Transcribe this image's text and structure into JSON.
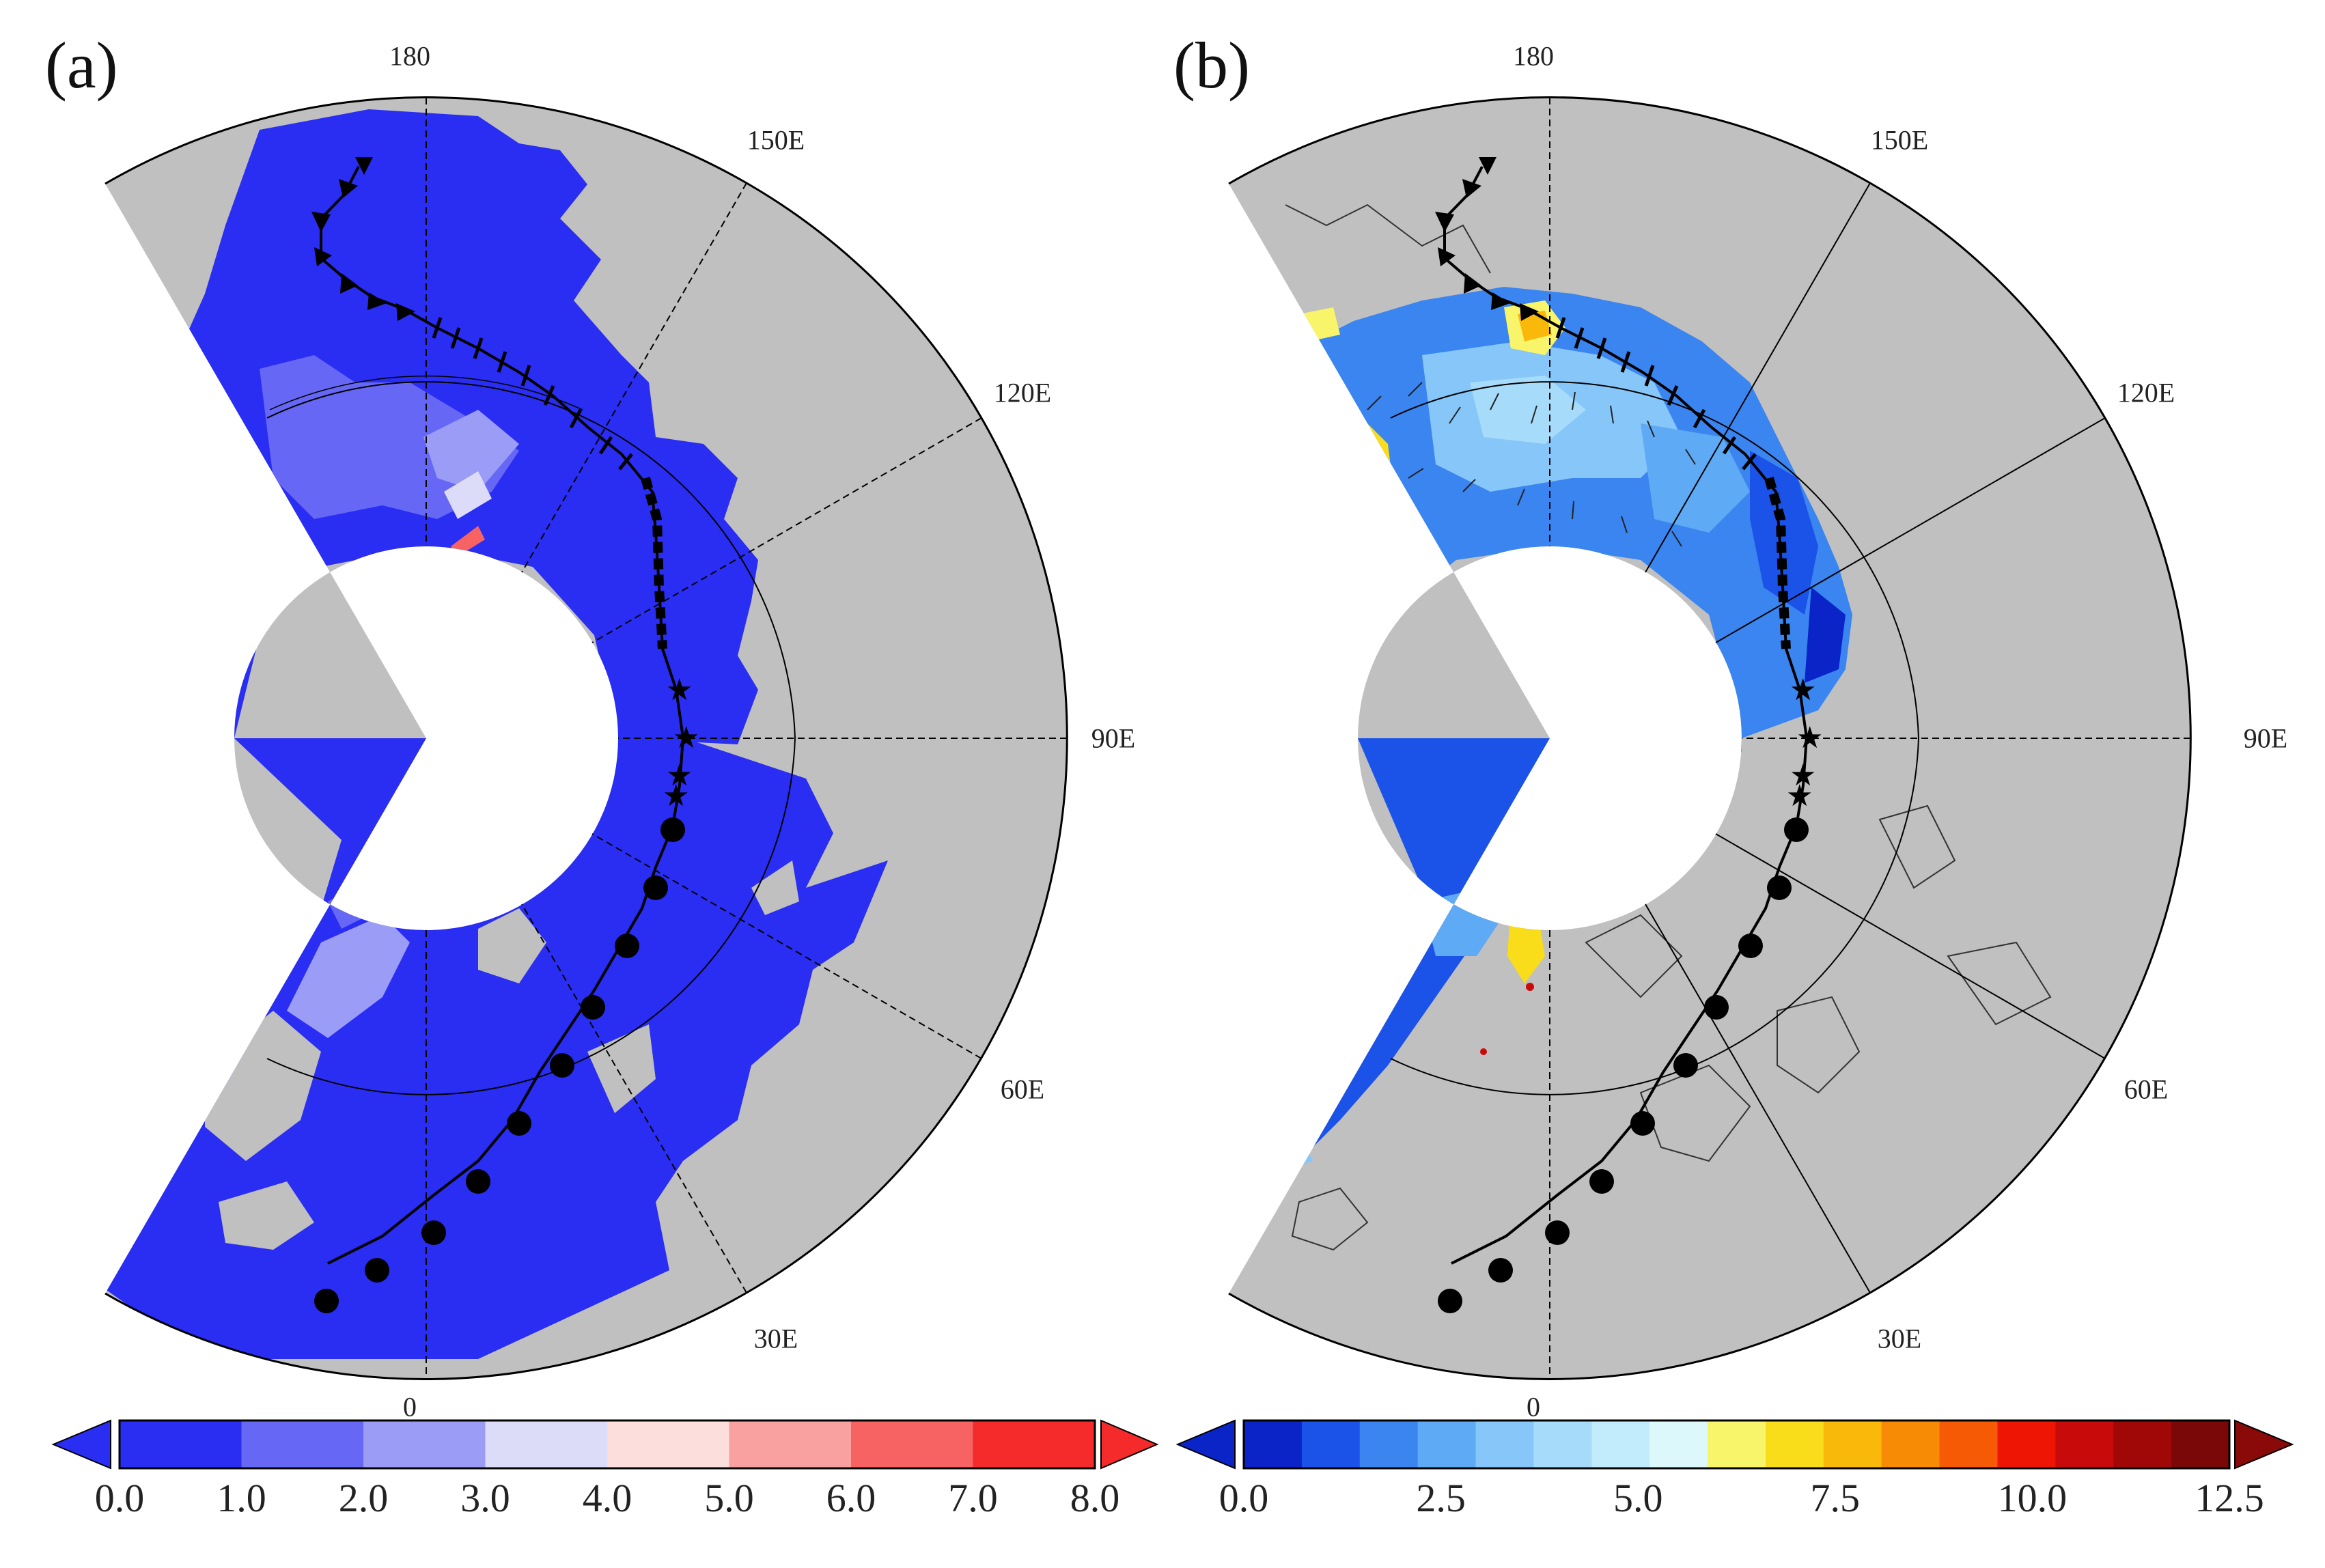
{
  "panels": [
    {
      "label": "(a)",
      "lon_labels": {
        "l180": "180",
        "l150": "150E",
        "l120": "120E",
        "l90": "90E",
        "l60": "60E",
        "l30": "30E",
        "l0": "0"
      },
      "colorbar": {
        "colors": [
          "#2a2df2",
          "#6667f5",
          "#9b9cf6",
          "#dcdcf9",
          "#fcdedc",
          "#f9a0a0",
          "#f76262",
          "#f52a2a"
        ],
        "under_color": "#2a2df2",
        "over_color": "#f52a2a",
        "tick_labels": [
          "0.0",
          "1.0",
          "2.0",
          "3.0",
          "4.0",
          "5.0",
          "6.0",
          "7.0",
          "8.0"
        ]
      }
    },
    {
      "label": "(b)",
      "lon_labels": {
        "l180": "180",
        "l150": "150E",
        "l120": "120E",
        "l90": "90E",
        "l60": "60E",
        "l30": "30E",
        "l0": "0"
      },
      "colorbar": {
        "colors": [
          "#0a24c8",
          "#1b52e8",
          "#3a85f0",
          "#5eaaf5",
          "#86c6f8",
          "#a7dbfa",
          "#c2ecfb",
          "#dcf8fb",
          "#f9f56a",
          "#f9dc1a",
          "#f9b80a",
          "#f78b05",
          "#f75a05",
          "#ee1505",
          "#c80a0a",
          "#a00808",
          "#7a0808"
        ],
        "under_color": "#0a24c8",
        "over_color": "#8a0a0a",
        "tick_labels": [
          "0.0",
          "2.5",
          "5.0",
          "7.5",
          "10.0",
          "12.5"
        ]
      }
    }
  ],
  "map_colors": {
    "land": "#c0c0c0",
    "ocean_a": "#2a2df2",
    "track": "#000000"
  }
}
